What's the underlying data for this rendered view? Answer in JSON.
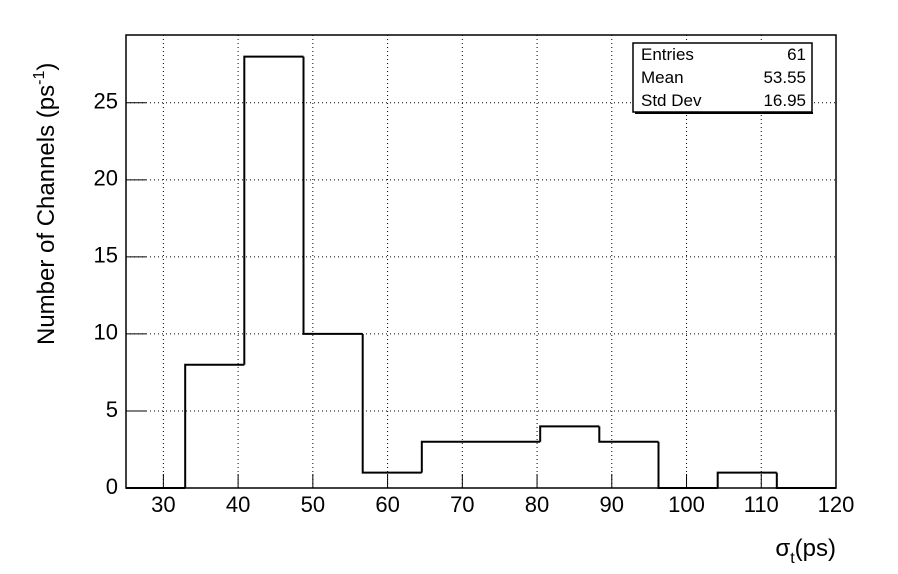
{
  "chart_data": {
    "type": "histogram",
    "bins": [
      25,
      32.92,
      40.83,
      48.75,
      56.67,
      64.58,
      72.5,
      80.42,
      88.33,
      96.25,
      104.17,
      112.08,
      120
    ],
    "counts": [
      0,
      8,
      28,
      10,
      1,
      3,
      3,
      4,
      3,
      0,
      1,
      0
    ],
    "color": "#000000",
    "xlim": [
      25,
      120
    ],
    "ylim": [
      0,
      29.4
    ],
    "xticks": [
      30,
      40,
      50,
      60,
      70,
      80,
      90,
      100,
      110,
      120
    ],
    "yticks": [
      0,
      5,
      10,
      15,
      20,
      25
    ],
    "grid": true,
    "x_label": {
      "main": "σ",
      "sub": "t",
      "tail": "(ps)"
    },
    "y_label": {
      "main": "Number of Channels (ps",
      "sup": "-1",
      "tail": ")"
    },
    "stats": [
      {
        "label": "Entries",
        "value": "61"
      },
      {
        "label": "Mean",
        "value": "53.55"
      },
      {
        "label": "Std Dev",
        "value": "16.95"
      }
    ]
  }
}
